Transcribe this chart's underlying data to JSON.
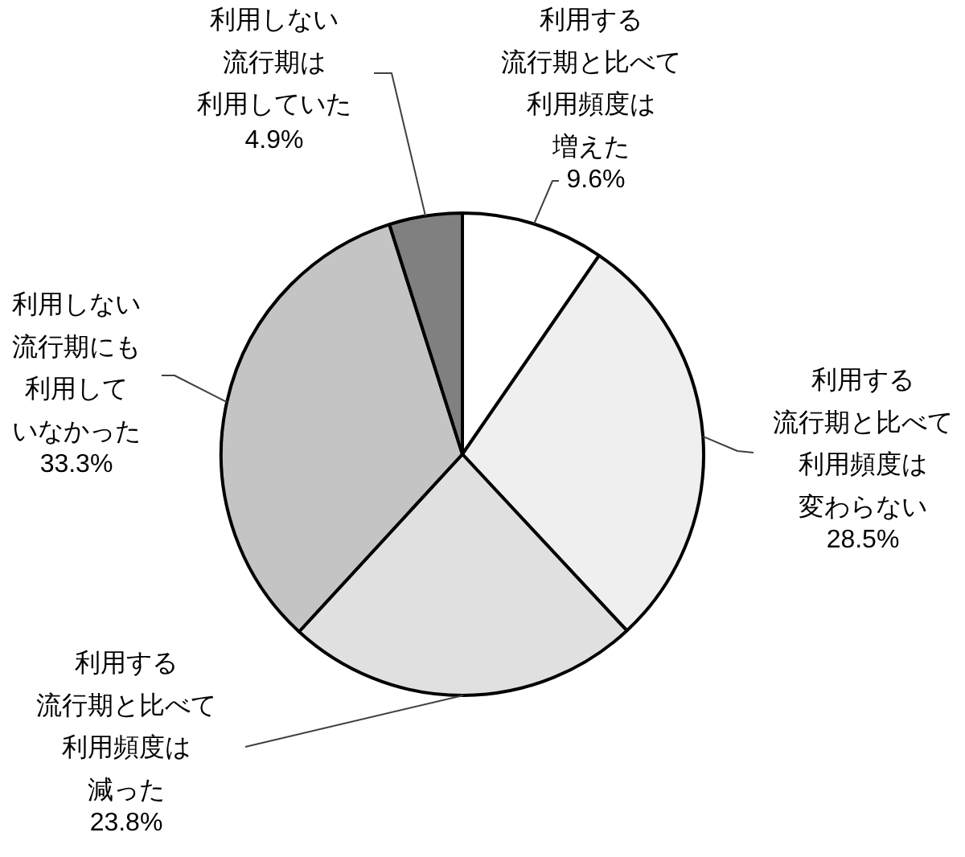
{
  "chart_data": {
    "type": "pie",
    "categories": [
      "利用する流行期と比べて利用頻度は増えた",
      "利用する流行期と比べて利用頻度は変わらない",
      "利用する流行期と比べて利用頻度は減った",
      "利用しない流行期にも利用していなかった",
      "利用しない流行期は利用していた"
    ],
    "values": [
      9.6,
      28.5,
      23.8,
      33.3,
      4.9
    ],
    "value_labels": [
      "9.6%",
      "28.5%",
      "23.8%",
      "33.3%",
      "4.9%"
    ],
    "colors": [
      "#ffffff",
      "#efefef",
      "#e0e0e0",
      "#c4c4c4",
      "#808080"
    ]
  }
}
